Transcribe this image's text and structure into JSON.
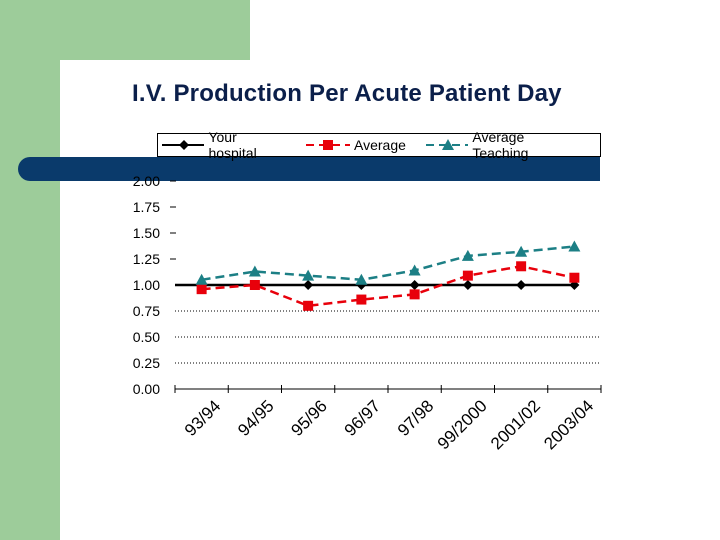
{
  "slide": {
    "title": "I.V. Production Per Acute Patient Day"
  },
  "colors": {
    "green": "#9dcc9a",
    "navy": "#0a3a6b",
    "title": "#0b1f4a",
    "your_hospital": "#000000",
    "average": "#e8000b",
    "average_teaching": "#1c7f85"
  },
  "chart_data": {
    "type": "line",
    "title": "I.V. Production Per Acute Patient Day",
    "xlabel": "",
    "ylabel": "",
    "categories": [
      "93/94",
      "94/95",
      "95/96",
      "96/97",
      "97/98",
      "99/2000",
      "2001/02",
      "2003/04"
    ],
    "ylim": [
      0,
      2
    ],
    "yticks": [
      "0.00",
      "0.25",
      "0.50",
      "0.75",
      "1.00",
      "1.25",
      "1.50",
      "1.75",
      "2.00"
    ],
    "series": [
      {
        "name": "Your hospital",
        "marker": "diamond",
        "color": "#000000",
        "dash": "solid",
        "values": [
          null,
          1.0,
          1.0,
          1.0,
          1.0,
          1.0,
          1.0,
          1.0
        ]
      },
      {
        "name": "Average",
        "marker": "square",
        "color": "#e8000b",
        "dash": "dashed",
        "values": [
          0.96,
          1.0,
          0.8,
          0.86,
          0.91,
          1.09,
          1.18,
          1.07
        ]
      },
      {
        "name": "Average Teaching",
        "marker": "triangle",
        "color": "#1c7f85",
        "dash": "dashed",
        "values": [
          1.05,
          1.13,
          1.09,
          1.05,
          1.14,
          1.28,
          1.32,
          1.37
        ]
      }
    ],
    "legend": {
      "position": "top"
    },
    "grid": "dotted horizontal below 1.00"
  }
}
